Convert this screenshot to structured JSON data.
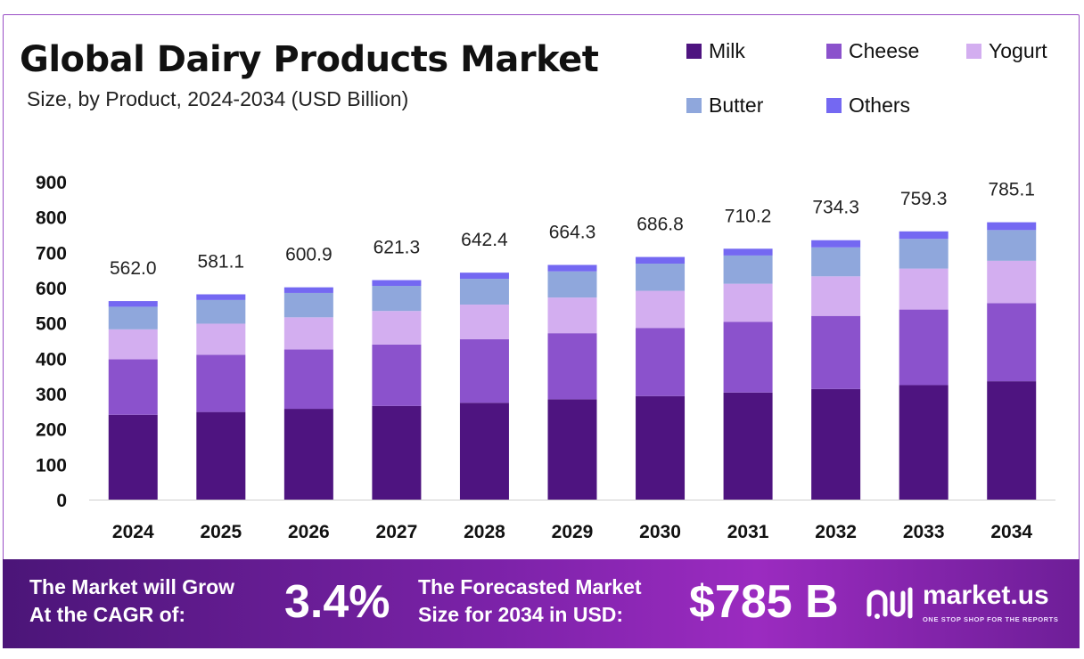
{
  "title": "Global Dairy Products Market",
  "subtitle": "Size, by Product, 2024-2034 (USD Billion)",
  "colors": {
    "milk": "#4e1480",
    "cheese": "#8b52cc",
    "yogurt": "#d3aef0",
    "butter": "#8fa7dc",
    "others": "#7468f2",
    "banner_start": "#4b1578",
    "banner_end": "#9b2bc0"
  },
  "chart_data": {
    "type": "bar",
    "stacked": true,
    "title": "Global Dairy Products Market",
    "subtitle": "Size, by Product, 2024-2034 (USD Billion)",
    "xlabel": "",
    "ylabel": "",
    "ylim": [
      0,
      900
    ],
    "yticks": [
      0,
      100,
      200,
      300,
      400,
      500,
      600,
      700,
      800,
      900
    ],
    "grid": false,
    "legend_position": "top-right",
    "categories": [
      "2024",
      "2025",
      "2026",
      "2027",
      "2028",
      "2029",
      "2030",
      "2031",
      "2032",
      "2033",
      "2034"
    ],
    "series": [
      {
        "name": "Milk",
        "color": "#4e1480",
        "values": [
          240,
          248,
          257,
          265,
          274,
          284,
          293,
          303,
          313,
          324,
          335
        ]
      },
      {
        "name": "Cheese",
        "color": "#8b52cc",
        "values": [
          157,
          162,
          168,
          174,
          180,
          187,
          193,
          200,
          207,
          214,
          221
        ]
      },
      {
        "name": "Yogurt",
        "color": "#d3aef0",
        "values": [
          85,
          88,
          91,
          95,
          98,
          101,
          105,
          108,
          112,
          116,
          120
        ]
      },
      {
        "name": "Butter",
        "color": "#8fa7dc",
        "values": [
          64,
          67,
          69,
          71,
          73,
          74,
          77,
          80,
          82,
          84,
          87
        ]
      },
      {
        "name": "Others",
        "color": "#7468f2",
        "values": [
          16,
          16.1,
          15.9,
          16.3,
          17.4,
          18.3,
          18.8,
          19.2,
          20.3,
          21.3,
          22.1
        ]
      }
    ],
    "totals": [
      "562.0",
      "581.1",
      "600.9",
      "621.3",
      "642.4",
      "664.3",
      "686.8",
      "710.2",
      "734.3",
      "759.3",
      "785.1"
    ]
  },
  "banner": {
    "cagr_label_line1": "The Market will Grow",
    "cagr_label_line2": "At the CAGR of:",
    "cagr_value": "3.4%",
    "forecast_label_line1": "The Forecasted Market",
    "forecast_label_line2": "Size for 2034 in USD:",
    "forecast_value": "$785 B"
  },
  "brand": {
    "name": "market.us",
    "tagline": "ONE STOP SHOP FOR THE REPORTS"
  }
}
